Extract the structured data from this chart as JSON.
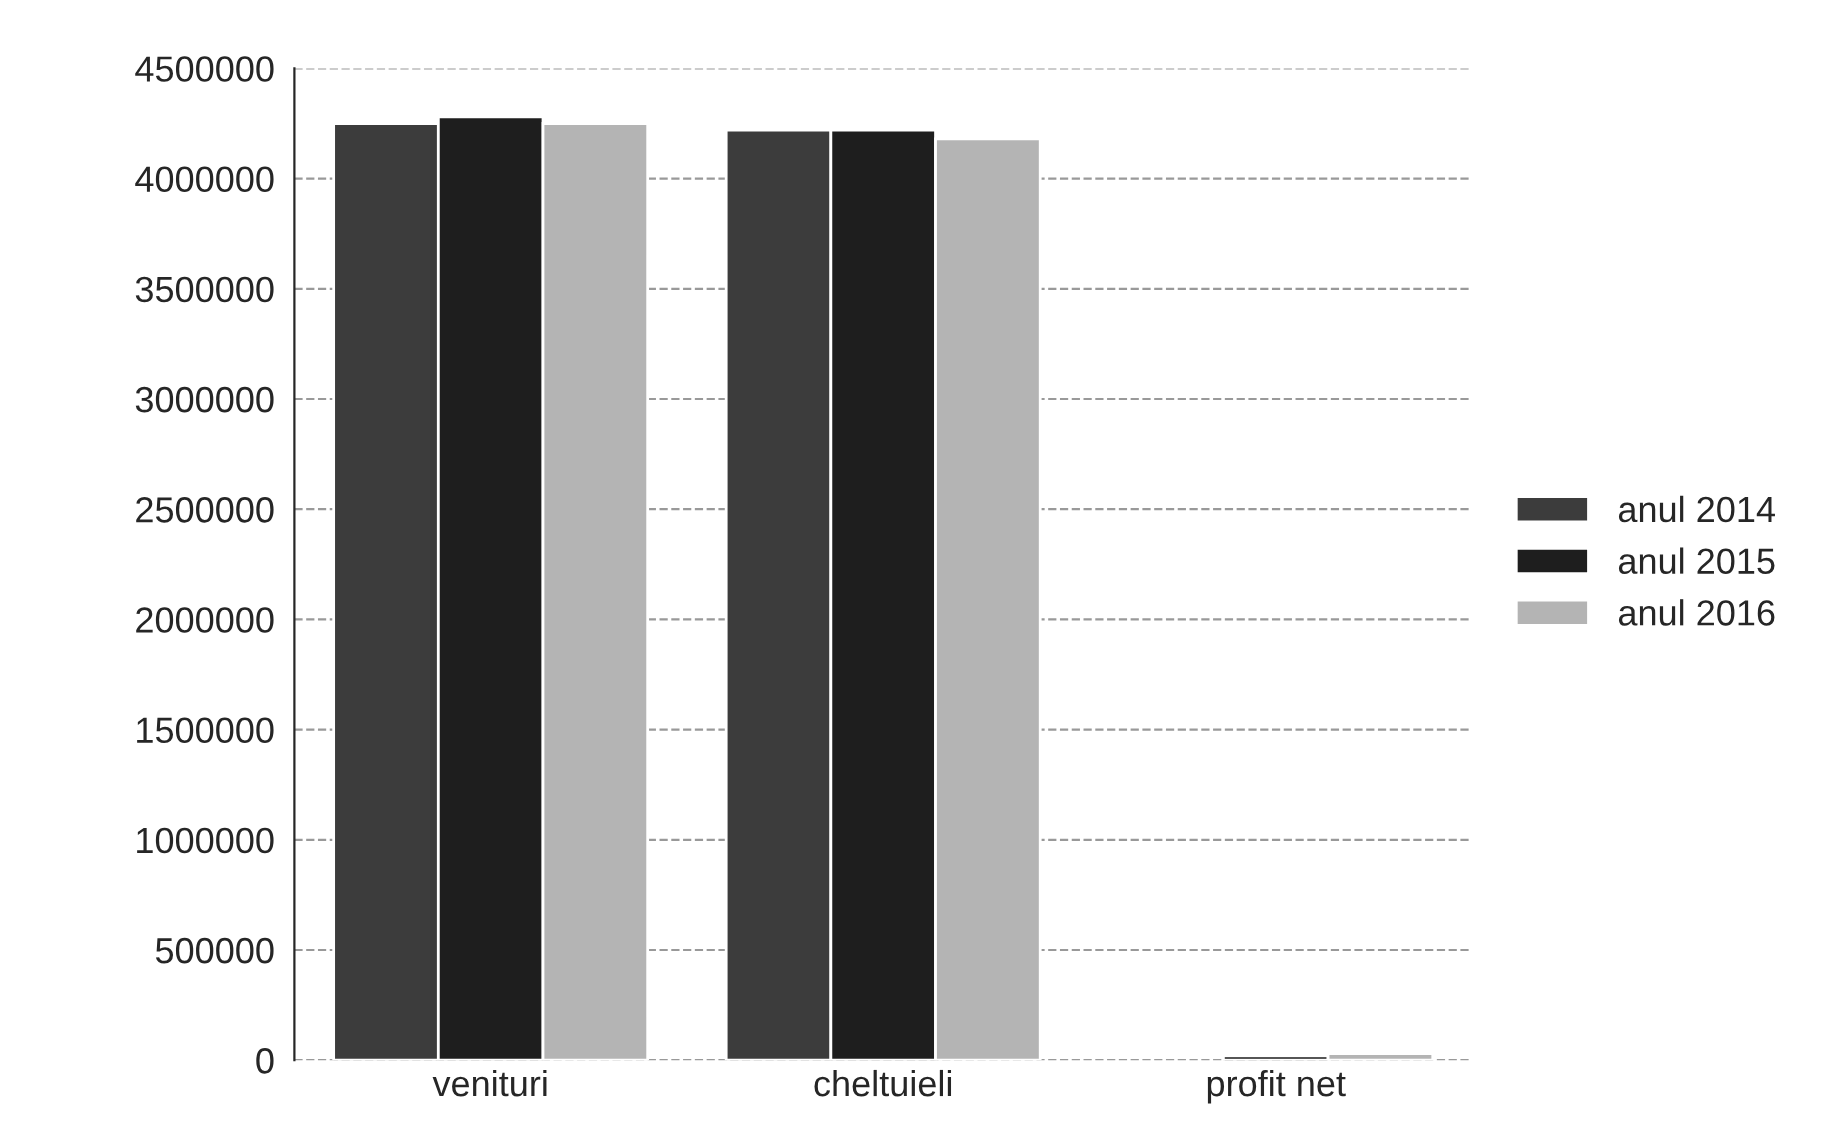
{
  "chart_data": {
    "type": "bar",
    "categories": [
      "venituri",
      "cheltuieli",
      "profit net"
    ],
    "series": [
      {
        "name": "anul 2014",
        "color": "#3c3c3c",
        "values": [
          4250000,
          4220000,
          null
        ]
      },
      {
        "name": "anul 2015",
        "color": "#1e1e1e",
        "values": [
          4280000,
          4220000,
          20000
        ]
      },
      {
        "name": "anul 2016",
        "color": "#b4b4b4",
        "values": [
          4250000,
          4180000,
          30000
        ]
      }
    ],
    "ylim": [
      0,
      4500000
    ],
    "yticks": [
      0,
      500000,
      1000000,
      1500000,
      2000000,
      2500000,
      3000000,
      3500000,
      4000000,
      4500000
    ],
    "grid": "y",
    "legend": "right"
  }
}
